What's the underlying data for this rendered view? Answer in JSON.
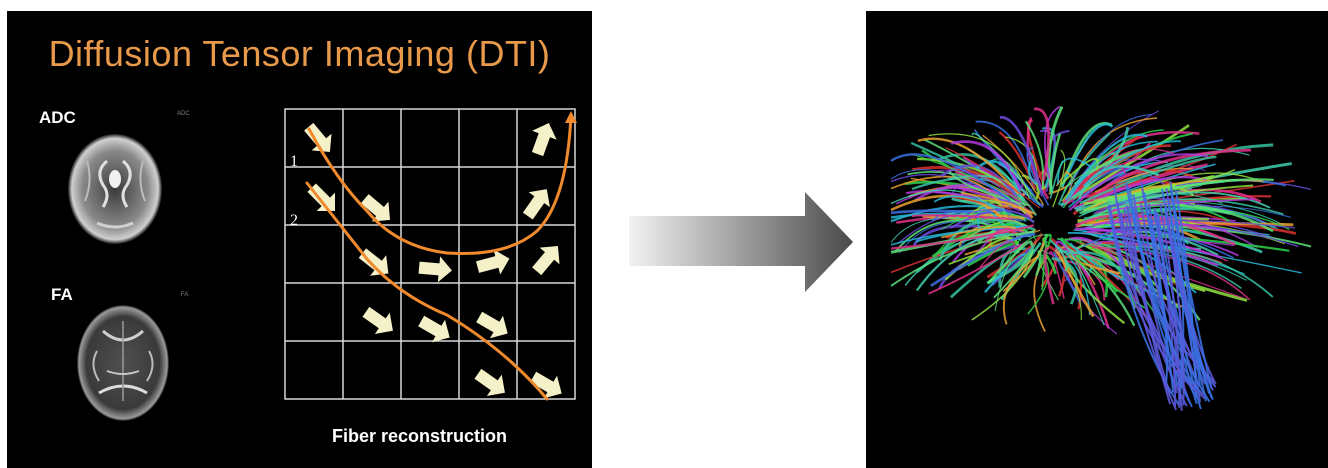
{
  "title": "Diffusion Tensor Imaging (DTI)",
  "scans": [
    {
      "label": "ADC",
      "small": "ADC"
    },
    {
      "label": "FA",
      "small": "FA"
    }
  ],
  "track_numbers": [
    "1",
    "2"
  ],
  "caption": "Fiber reconstruction",
  "colors": {
    "title": "#e89a4a",
    "track": "#f08a2c",
    "vector": "#f4f0c8",
    "grid": "#d8d8d8",
    "arrow_start": "#f2f2f2",
    "arrow_end": "#4a4a4a"
  },
  "icons": {
    "process_arrow": "right-arrow-icon",
    "tractography": "brain-fiber-tractography-icon"
  }
}
